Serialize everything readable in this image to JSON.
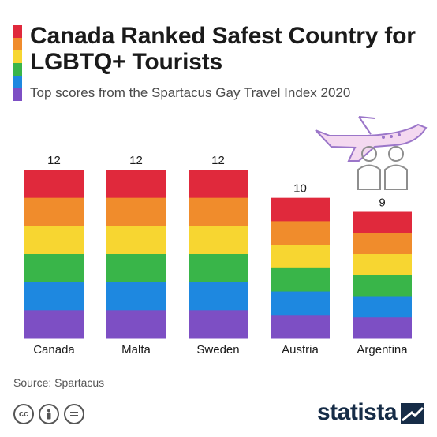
{
  "title": "Canada Ranked Safest Country for LGBTQ+ Tourists",
  "subtitle": "Top scores from the Spartacus Gay Travel Index 2020",
  "source": "Source: Spartacus",
  "brand": "statista",
  "license_icons": [
    "cc-icon",
    "attribution-icon",
    "no-derivatives-icon"
  ],
  "colors": {
    "stripes": [
      "#e0293c",
      "#f08c2c",
      "#f7d631",
      "#39b549",
      "#1e88e0",
      "#7d4fc4"
    ]
  },
  "chart_data": {
    "type": "bar",
    "categories": [
      "Canada",
      "Malta",
      "Sweden",
      "Austria",
      "Argentina"
    ],
    "values": [
      12,
      12,
      12,
      10,
      9
    ],
    "title": "Canada Ranked Safest Country for LGBTQ+ Tourists",
    "xlabel": "",
    "ylabel": "",
    "ylim": [
      0,
      12
    ],
    "grid": false
  }
}
